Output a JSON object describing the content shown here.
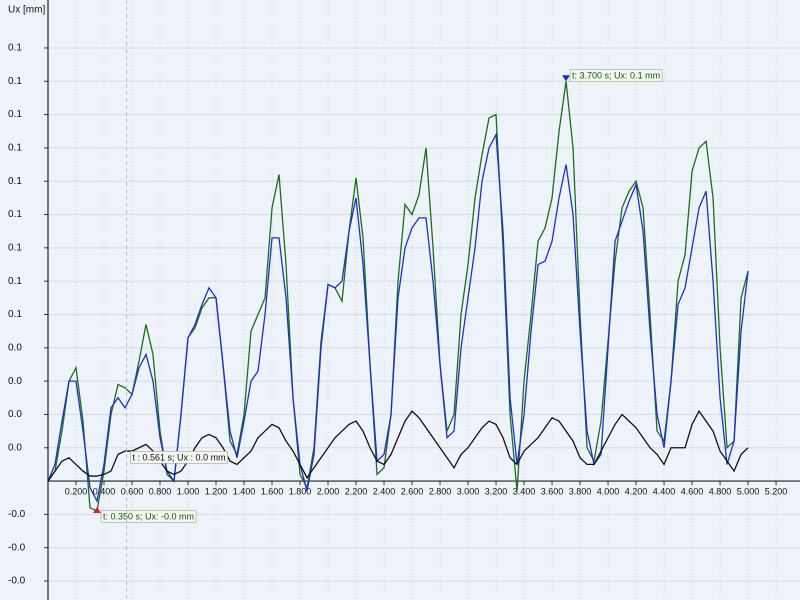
{
  "chart_data": {
    "type": "line",
    "y_label": "Ux [mm]",
    "xlim": [
      0,
      5.371
    ],
    "ylim": [
      -0.0357,
      0.1444
    ],
    "grid": true,
    "xticks": [
      {
        "value": 0.2,
        "label": "0.200"
      },
      {
        "value": 0.4,
        "label": "0.400"
      },
      {
        "value": 0.6,
        "label": "0.600"
      },
      {
        "value": 0.8,
        "label": "0.800"
      },
      {
        "value": 1.0,
        "label": "1.000"
      },
      {
        "value": 1.2,
        "label": "1.200"
      },
      {
        "value": 1.4,
        "label": "1.400"
      },
      {
        "value": 1.6,
        "label": "1.600"
      },
      {
        "value": 1.8,
        "label": "1.800"
      },
      {
        "value": 2.0,
        "label": "2.000"
      },
      {
        "value": 2.2,
        "label": "2.200"
      },
      {
        "value": 2.4,
        "label": "2.400"
      },
      {
        "value": 2.6,
        "label": "2.600"
      },
      {
        "value": 2.8,
        "label": "2.800"
      },
      {
        "value": 3.0,
        "label": "3.000"
      },
      {
        "value": 3.2,
        "label": "3.200"
      },
      {
        "value": 3.4,
        "label": "3.400"
      },
      {
        "value": 3.6,
        "label": "3.600"
      },
      {
        "value": 3.8,
        "label": "3.800"
      },
      {
        "value": 4.0,
        "label": "4.000"
      },
      {
        "value": 4.2,
        "label": "4.200"
      },
      {
        "value": 4.4,
        "label": "4.400"
      },
      {
        "value": 4.6,
        "label": "4.600"
      },
      {
        "value": 4.8,
        "label": "4.800"
      },
      {
        "value": 5.0,
        "label": "5.000"
      },
      {
        "value": 5.2,
        "label": "5.200"
      }
    ],
    "yticks": [
      {
        "value": 0.13,
        "label": "0.1"
      },
      {
        "value": 0.12,
        "label": "0.1"
      },
      {
        "value": 0.11,
        "label": "0.1"
      },
      {
        "value": 0.1,
        "label": "0.1"
      },
      {
        "value": 0.09,
        "label": "0.1"
      },
      {
        "value": 0.08,
        "label": "0.1"
      },
      {
        "value": 0.07,
        "label": "0.1"
      },
      {
        "value": 0.06,
        "label": "0.1"
      },
      {
        "value": 0.05,
        "label": "0.1"
      },
      {
        "value": 0.04,
        "label": "0.0"
      },
      {
        "value": 0.03,
        "label": "0.0"
      },
      {
        "value": 0.02,
        "label": "0.0"
      },
      {
        "value": 0.01,
        "label": "0.0"
      },
      {
        "value": -0.01,
        "label": "-0.0"
      },
      {
        "value": -0.02,
        "label": "-0.0"
      },
      {
        "value": -0.03,
        "label": "-0.0"
      }
    ],
    "x": [
      0,
      0.05,
      0.1,
      0.15,
      0.2,
      0.25,
      0.3,
      0.35,
      0.4,
      0.45,
      0.5,
      0.55,
      0.6,
      0.65,
      0.7,
      0.75,
      0.8,
      0.85,
      0.9,
      0.95,
      1.0,
      1.05,
      1.1,
      1.15,
      1.2,
      1.25,
      1.3,
      1.35,
      1.4,
      1.45,
      1.5,
      1.55,
      1.6,
      1.65,
      1.7,
      1.75,
      1.8,
      1.85,
      1.9,
      1.95,
      2.0,
      2.05,
      2.1,
      2.15,
      2.2,
      2.25,
      2.3,
      2.35,
      2.4,
      2.45,
      2.5,
      2.55,
      2.6,
      2.65,
      2.7,
      2.75,
      2.8,
      2.85,
      2.9,
      2.95,
      3.0,
      3.05,
      3.1,
      3.15,
      3.2,
      3.25,
      3.3,
      3.35,
      3.4,
      3.45,
      3.5,
      3.55,
      3.6,
      3.65,
      3.7,
      3.75,
      3.8,
      3.85,
      3.9,
      3.95,
      4.0,
      4.05,
      4.1,
      4.15,
      4.2,
      4.25,
      4.3,
      4.35,
      4.4,
      4.45,
      4.5,
      4.55,
      4.6,
      4.65,
      4.7,
      4.75,
      4.8,
      4.85,
      4.9,
      4.95,
      5.0
    ],
    "series": [
      {
        "color": "#1a6e1a",
        "values": [
          0,
          0.003,
          0.015,
          0.03,
          0.034,
          0.018,
          -0.008,
          -0.009,
          0.003,
          0.02,
          0.029,
          0.028,
          0.026,
          0.036,
          0.047,
          0.038,
          0.015,
          0.002,
          0,
          0.02,
          0.043,
          0.046,
          0.052,
          0.055,
          0.055,
          0.035,
          0.012,
          0.008,
          0.02,
          0.045,
          0.05,
          0.055,
          0.082,
          0.092,
          0.065,
          0.025,
          0.002,
          -0.002,
          0.01,
          0.042,
          0.059,
          0.058,
          0.054,
          0.075,
          0.091,
          0.073,
          0.035,
          0.002,
          0.004,
          0.02,
          0.06,
          0.083,
          0.08,
          0.086,
          0.1,
          0.07,
          0.035,
          0.015,
          0.02,
          0.05,
          0.065,
          0.085,
          0.098,
          0.109,
          0.11,
          0.07,
          0.02,
          -0.003,
          0.03,
          0.05,
          0.072,
          0.076,
          0.085,
          0.105,
          0.12,
          0.1,
          0.05,
          0.01,
          0.006,
          0.018,
          0.042,
          0.066,
          0.082,
          0.087,
          0.09,
          0.082,
          0.05,
          0.015,
          0.012,
          0.03,
          0.06,
          0.068,
          0.093,
          0.1,
          0.102,
          0.085,
          0.04,
          0.01,
          0.012,
          0.055,
          0.063
        ]
      },
      {
        "color": "#1f2fcc",
        "values": [
          0,
          0.005,
          0.018,
          0.03,
          0.03,
          0.015,
          -0.002,
          -0.006,
          0.005,
          0.022,
          0.025,
          0.022,
          0.026,
          0.034,
          0.038,
          0.03,
          0.013,
          0.003,
          0,
          0.02,
          0.043,
          0.047,
          0.053,
          0.058,
          0.055,
          0.035,
          0.015,
          0.007,
          0.018,
          0.03,
          0.033,
          0.05,
          0.073,
          0.073,
          0.055,
          0.025,
          0.005,
          -0.003,
          0.008,
          0.04,
          0.059,
          0.058,
          0.06,
          0.075,
          0.085,
          0.065,
          0.035,
          0.006,
          0.008,
          0.02,
          0.055,
          0.07,
          0.076,
          0.079,
          0.079,
          0.06,
          0.035,
          0.013,
          0.015,
          0.04,
          0.055,
          0.07,
          0.09,
          0.1,
          0.104,
          0.075,
          0.025,
          0.005,
          0.02,
          0.045,
          0.065,
          0.066,
          0.072,
          0.085,
          0.095,
          0.08,
          0.045,
          0.015,
          0.005,
          0.008,
          0.04,
          0.072,
          0.078,
          0.084,
          0.089,
          0.075,
          0.045,
          0.02,
          0.01,
          0.03,
          0.053,
          0.058,
          0.07,
          0.082,
          0.087,
          0.06,
          0.025,
          0.005,
          0.012,
          0.045,
          0.063
        ]
      },
      {
        "color": "#111111",
        "values": [
          0,
          0.003,
          0.006,
          0.007,
          0.005,
          0.003,
          0.0015,
          0.0015,
          0.002,
          0.003,
          0.008,
          0.009,
          0.009,
          0.01,
          0.011,
          0.009,
          0.006,
          0.003,
          0.002,
          0.003,
          0.006,
          0.01,
          0.013,
          0.014,
          0.013,
          0.01,
          0.006,
          0.005,
          0.007,
          0.009,
          0.013,
          0.015,
          0.017,
          0.016,
          0.012,
          0.009,
          0.005,
          0.001,
          0.004,
          0.007,
          0.01,
          0.013,
          0.015,
          0.017,
          0.018,
          0.015,
          0.01,
          0.006,
          0.005,
          0.008,
          0.013,
          0.018,
          0.021,
          0.019,
          0.016,
          0.013,
          0.01,
          0.007,
          0.004,
          0.008,
          0.01,
          0.013,
          0.016,
          0.018,
          0.017,
          0.013,
          0.007,
          0.005,
          0.009,
          0.011,
          0.013,
          0.016,
          0.019,
          0.018,
          0.015,
          0.012,
          0.007,
          0.005,
          0.005,
          0.009,
          0.013,
          0.017,
          0.02,
          0.018,
          0.016,
          0.013,
          0.01,
          0.008,
          0.005,
          0.01,
          0.01,
          0.01,
          0.017,
          0.021,
          0.018,
          0.015,
          0.009,
          0.006,
          0.003,
          0.008,
          0.01
        ]
      }
    ],
    "annotations": [
      {
        "text": "t: 3.700 s; Ux: 0.1 mm",
        "x": 3.7,
        "y": 0.12,
        "color": "#1f2fcc"
      },
      {
        "text": "t: 0.350 s; Ux: -0.0 mm",
        "x": 0.35,
        "y": -0.009,
        "color": "#e02020"
      }
    ],
    "cursor": {
      "text": "t : 0.561 s; Ux : 0.0 mm",
      "x": 0.561
    }
  }
}
